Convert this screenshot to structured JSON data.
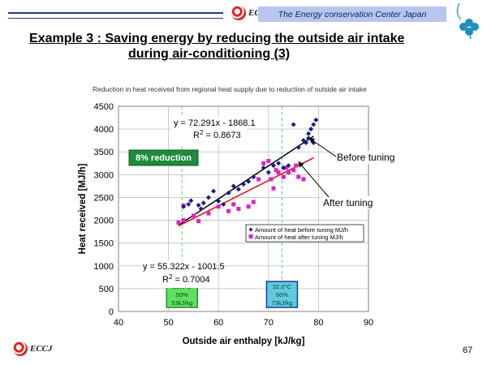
{
  "header": {
    "logo_text": "ECCJ",
    "org_name": "The Energy conservation Center Japan"
  },
  "slide": {
    "title_line1": "Example 3 : Saving energy by reducing the outside air intake",
    "title_line2": "during air-conditioning (3)",
    "page_number": "67"
  },
  "chart_data": {
    "type": "scatter",
    "title": "Reduction in heat received from regional heat supply due to reduction of outside air intake",
    "xlabel": "Outside air enthalpy [kJ/kg]",
    "ylabel": "Heat received [MJ/h]",
    "xlim": [
      40,
      90
    ],
    "ylim": [
      0,
      4500
    ],
    "xticks": [
      40,
      50,
      60,
      70,
      80,
      90
    ],
    "yticks": [
      0,
      500,
      1000,
      1500,
      2000,
      2500,
      3000,
      3500,
      4000,
      4500
    ],
    "grid": true,
    "legend_position": "lower-right inside plot",
    "series": [
      {
        "name": "Amount of heat before tuning MJ/h",
        "marker": "diamond",
        "color": "#1a1a80",
        "points": [
          [
            53,
            2300
          ],
          [
            54,
            2350
          ],
          [
            54.5,
            2430
          ],
          [
            56,
            2330
          ],
          [
            56.5,
            2250
          ],
          [
            57,
            2380
          ],
          [
            58,
            2500
          ],
          [
            59,
            2640
          ],
          [
            60,
            2420
          ],
          [
            61,
            2350
          ],
          [
            62,
            2600
          ],
          [
            63,
            2750
          ],
          [
            64,
            2680
          ],
          [
            65,
            2790
          ],
          [
            66,
            2850
          ],
          [
            67,
            2950
          ],
          [
            69,
            3150
          ],
          [
            70,
            3050
          ],
          [
            71,
            3200
          ],
          [
            72,
            3250
          ],
          [
            73,
            3150
          ],
          [
            74,
            3200
          ],
          [
            75,
            4100
          ],
          [
            76,
            3600
          ],
          [
            77,
            3750
          ],
          [
            77.5,
            3700
          ],
          [
            78,
            3900
          ],
          [
            78.5,
            4000
          ],
          [
            79,
            4100
          ],
          [
            79.5,
            4200
          ],
          [
            78,
            3800
          ],
          [
            79,
            3700
          ]
        ]
      },
      {
        "name": "Amount of heat after tuning MJ/h",
        "marker": "square",
        "color": "#e020c8",
        "points": [
          [
            52,
            1950
          ],
          [
            53,
            2000
          ],
          [
            53,
            2320
          ],
          [
            55,
            2100
          ],
          [
            56,
            1980
          ],
          [
            58,
            2150
          ],
          [
            60,
            2300
          ],
          [
            62,
            2200
          ],
          [
            63,
            2350
          ],
          [
            64,
            2250
          ],
          [
            66,
            2300
          ],
          [
            67,
            2400
          ],
          [
            68,
            2900
          ],
          [
            69,
            3250
          ],
          [
            70,
            3300
          ],
          [
            70.5,
            2900
          ],
          [
            71,
            2700
          ],
          [
            71.5,
            3100
          ],
          [
            72,
            3050
          ],
          [
            73,
            2950
          ],
          [
            73.5,
            3150
          ],
          [
            74,
            3050
          ],
          [
            75,
            3100
          ],
          [
            75.5,
            3200
          ],
          [
            76,
            2950
          ],
          [
            77,
            2900
          ]
        ]
      }
    ],
    "trendlines": [
      {
        "series": "before",
        "slope": 72.291,
        "intercept": -1868.1,
        "x_range": [
          52,
          79
        ],
        "color": "#000000",
        "equation": "y = 72.291x - 1868.1",
        "r2_prefix": "R",
        "r2_sup": "2",
        "r2_value": " = 0.8673"
      },
      {
        "series": "after",
        "slope": 55.322,
        "intercept": -1001.5,
        "x_range": [
          52,
          79
        ],
        "color": "#e01010",
        "equation": "y = 55.322x - 1001.5",
        "r2_prefix": "R",
        "r2_sup": "2",
        "r2_value": " = 0.7004"
      }
    ],
    "reference_lines": [
      {
        "x": 52.7,
        "color": "#7fdc7f",
        "box_lines": [
          "26.0°C",
          "50%",
          "53kJ/kg"
        ],
        "box_fill": "#5ee05e",
        "box_border": "#2a8a2a"
      },
      {
        "x": 72.7,
        "color": "#6ec6d8",
        "box_lines": [
          "32.0°C",
          "60%",
          "73kJ/kg"
        ],
        "box_fill": "#5ecbe0",
        "box_border": "#1a3a9a"
      }
    ],
    "annotations": [
      {
        "text": "8% reduction",
        "style": "green-badge"
      },
      {
        "text": "Before tuning",
        "arrow_to": [
          77.5,
          3800
        ]
      },
      {
        "text": "After tuning",
        "arrow_to": [
          76,
          3280
        ]
      }
    ]
  }
}
